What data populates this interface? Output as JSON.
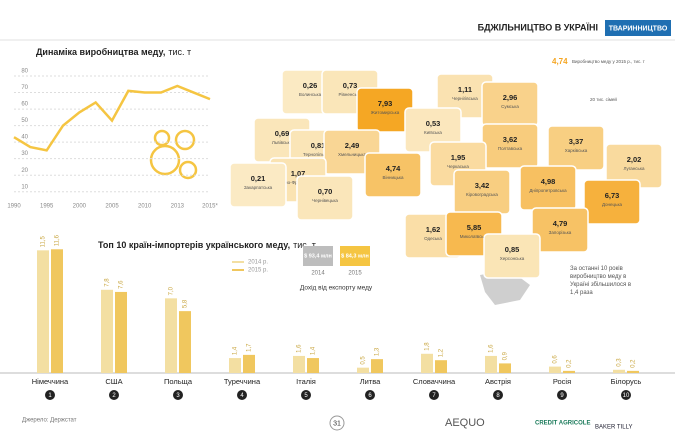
{
  "header": {
    "title": "БДЖІЛЬНИЦТВО В УКРАЇНІ",
    "section": "ТВАРИННИЦТВО"
  },
  "chart_data": [
    {
      "type": "line",
      "title": "Динаміка виробництва меду,",
      "unit": "тис. т",
      "categories": [
        "1990",
        null,
        "1995",
        null,
        "2000",
        null,
        "2005",
        null,
        "2010",
        null,
        "2013",
        null,
        "2015*"
      ],
      "values": [
        43,
        37,
        35,
        50,
        58,
        64,
        53,
        71,
        70,
        70,
        74,
        70,
        66
      ],
      "color": "#f5c542",
      "ylim": [
        5,
        80
      ],
      "yticks": [
        10,
        20,
        30,
        40,
        50,
        60,
        70,
        80
      ],
      "grid": true
    },
    {
      "type": "bar",
      "title": "Топ 10 країн-імпортерів українського меду,",
      "unit": "тис. т",
      "categories": [
        "Німеччина",
        "США",
        "Польща",
        "Туреччина",
        "Італія",
        "Литва",
        "Словаччина",
        "Австрія",
        "Росія",
        "Білорусь"
      ],
      "ranks": [
        "1",
        "2",
        "3",
        "4",
        "5",
        "6",
        "7",
        "8",
        "9",
        "10"
      ],
      "series": [
        {
          "name": "2014 р.",
          "color": "#f3dfa2",
          "values": [
            11.5,
            7.8,
            7.0,
            1.4,
            1.6,
            0.5,
            1.8,
            1.6,
            0.6,
            0.3
          ],
          "value_labels": [
            "11,5",
            "7,8",
            "7,0",
            "1,4",
            "1,6",
            "0,5",
            "1,8",
            "1,6",
            "0,6",
            "0,3"
          ]
        },
        {
          "name": "2015 р.",
          "color": "#f0c75e",
          "values": [
            11.6,
            7.6,
            5.8,
            1.7,
            1.4,
            1.3,
            1.2,
            0.9,
            0.2,
            0.2
          ],
          "value_labels": [
            "11,6",
            "7,6",
            "5,8",
            "1,7",
            "1,4",
            "1,3",
            "1,2",
            "0,9",
            "0,2",
            "0,2"
          ]
        }
      ],
      "ylim": [
        0,
        12
      ]
    }
  ],
  "map": {
    "legend_value": "4,74",
    "legend_text": "Виробництво меду у 2015 р., тис. т",
    "family_text": "20 тис. сімей",
    "regions": [
      {
        "name": "Волинська",
        "value": 0.26,
        "value_label": "0,26"
      },
      {
        "name": "Рівненська",
        "value": 0.73,
        "value_label": "0,73"
      },
      {
        "name": "Житомирська",
        "value": 7.93,
        "value_label": "7,93"
      },
      {
        "name": "Чернігівська",
        "value": 1.11,
        "value_label": "1,11"
      },
      {
        "name": "Сумська",
        "value": 2.96,
        "value_label": "2,96"
      },
      {
        "name": "Львівська",
        "value": 0.69,
        "value_label": "0,69"
      },
      {
        "name": "Тернопільська",
        "value": 0.81,
        "value_label": "0,81"
      },
      {
        "name": "Хмельницька",
        "value": 2.49,
        "value_label": "2,49"
      },
      {
        "name": "Київська",
        "value": 0.53,
        "value_label": "0,53"
      },
      {
        "name": "Полтавська",
        "value": 3.62,
        "value_label": "3,62"
      },
      {
        "name": "Харківська",
        "value": 3.37,
        "value_label": "3,37"
      },
      {
        "name": "Івано-Франківська",
        "value": 1.07,
        "value_label": "1,07"
      },
      {
        "name": "Закарпатська",
        "value": 0.21,
        "value_label": "0,21"
      },
      {
        "name": "Чернівецька",
        "value": 0.7,
        "value_label": "0,70"
      },
      {
        "name": "Вінницька",
        "value": 4.74,
        "value_label": "4,74"
      },
      {
        "name": "Черкаська",
        "value": 1.95,
        "value_label": "1,95"
      },
      {
        "name": "Кіровоградська",
        "value": 3.42,
        "value_label": "3,42"
      },
      {
        "name": "Дніпропетровська",
        "value": 4.98,
        "value_label": "4,98"
      },
      {
        "name": "Луганська",
        "value": 2.02,
        "value_label": "2,02"
      },
      {
        "name": "Донецька",
        "value": 6.73,
        "value_label": "6,73"
      },
      {
        "name": "Запорізька",
        "value": 4.79,
        "value_label": "4,79"
      },
      {
        "name": "Одеська",
        "value": 1.62,
        "value_label": "1,62"
      },
      {
        "name": "Миколаївська",
        "value": 5.85,
        "value_label": "5,85"
      },
      {
        "name": "Херсонська",
        "value": 0.85,
        "value_label": "0,85"
      }
    ],
    "note": "За останні 10 років виробництво меду в Україні збільшилося в 1,4 раза"
  },
  "export": {
    "title": "Дохід від експорту меду",
    "items": [
      {
        "label": "$ 93,4 млн",
        "year": "2014"
      },
      {
        "label": "$ 84,3 млн",
        "year": "2015"
      }
    ]
  },
  "footer": {
    "source": "Джерело: Держстат",
    "page": "31",
    "logos": [
      "AEQUO",
      "CREDIT AGRICOLE",
      "BAKER TILLY"
    ]
  }
}
